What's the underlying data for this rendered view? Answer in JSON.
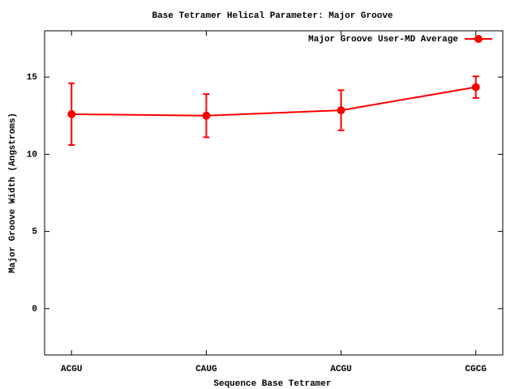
{
  "chart_data": {
    "type": "line",
    "title": "Base Tetramer Helical Parameter: Major Groove",
    "x_label": "Sequence Base Tetramer",
    "y_label": "Major Groove Width (Angstroms)",
    "categories": [
      "ACGU",
      "CAUG",
      "ACGU",
      "CGCG"
    ],
    "series": [
      {
        "name": "Major Groove User-MD Average",
        "color": "#ff0000",
        "values": [
          12.6,
          12.5,
          12.85,
          14.35
        ],
        "errors": [
          2.0,
          1.4,
          1.3,
          0.7
        ]
      }
    ],
    "ylim": [
      -3,
      18
    ],
    "yticks": [
      0,
      5,
      10,
      15
    ],
    "grid": false,
    "legend": "top-right"
  }
}
